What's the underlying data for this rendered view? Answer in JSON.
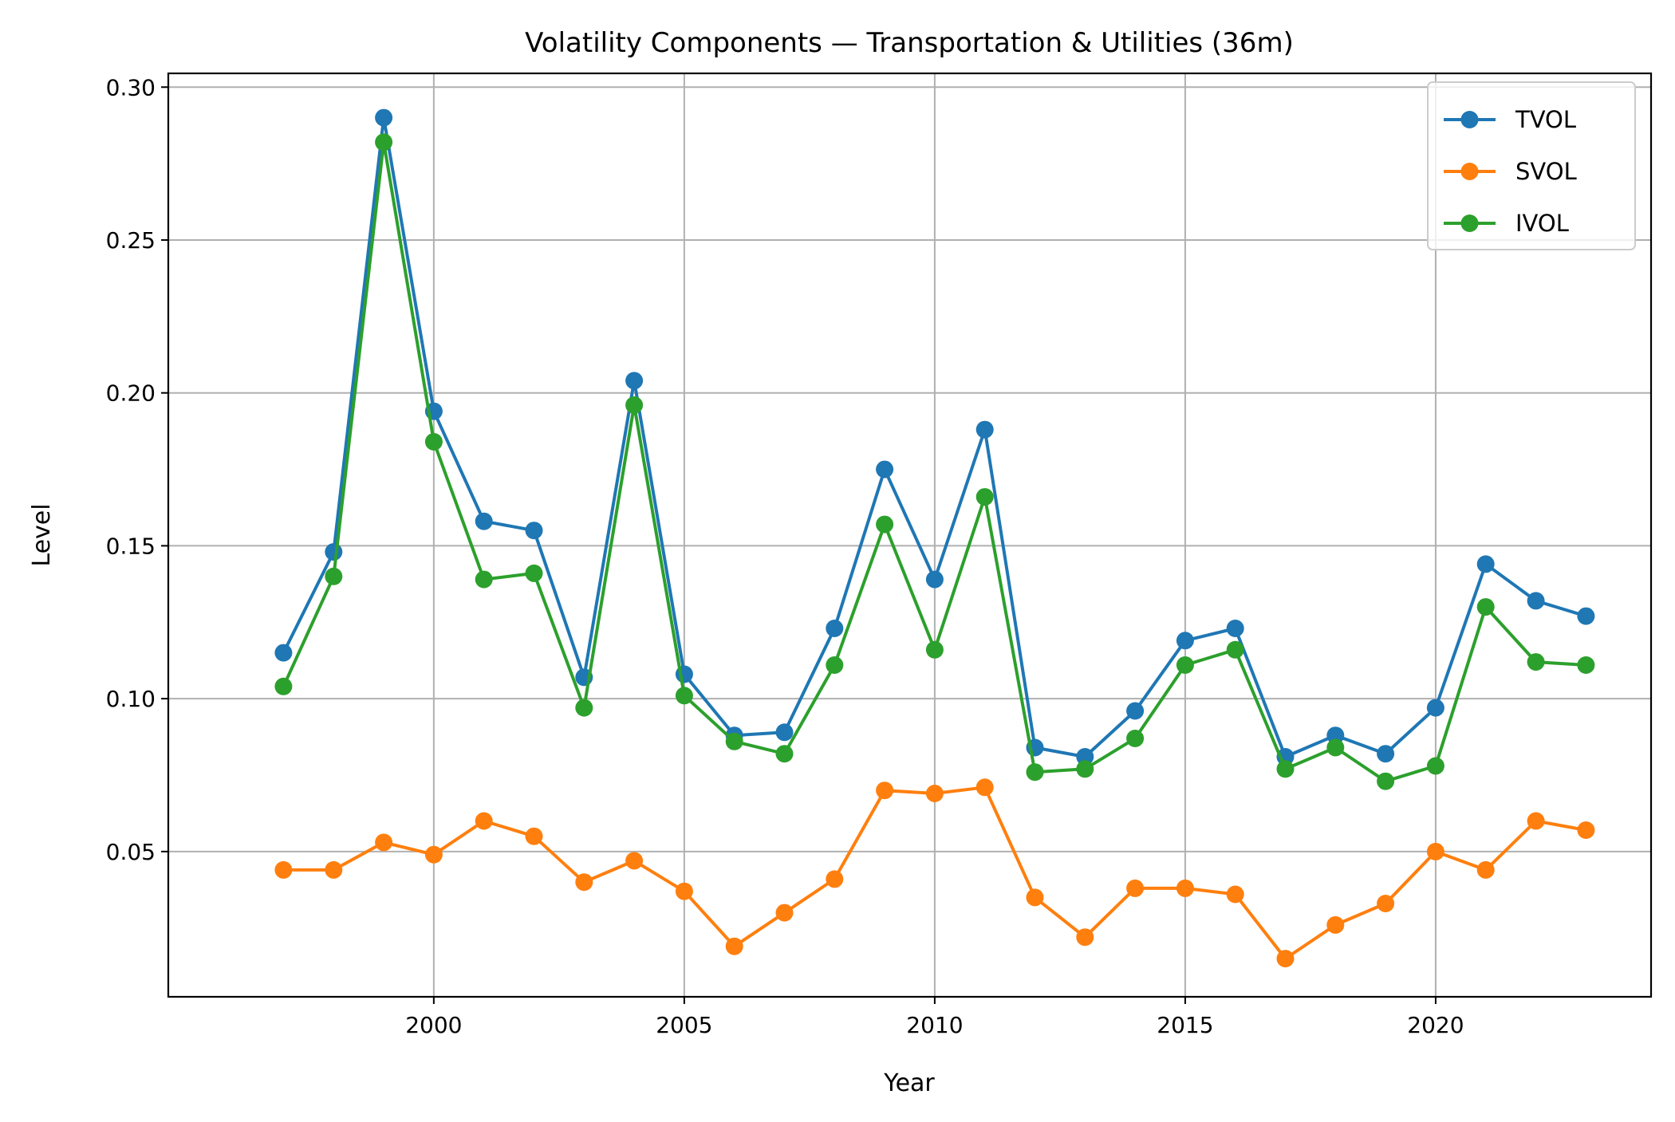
{
  "chart_data": {
    "type": "line",
    "title": "Volatility Components — Transportation & Utilities (36m)",
    "xlabel": "Year",
    "ylabel": "Level",
    "x": [
      1997,
      1998,
      1999,
      2000,
      2001,
      2002,
      2003,
      2004,
      2005,
      2006,
      2007,
      2008,
      2009,
      2010,
      2011,
      2012,
      2013,
      2014,
      2015,
      2016,
      2017,
      2018,
      2019,
      2020,
      2021,
      2022,
      2023
    ],
    "xlim": [
      1994.7,
      2024.3
    ],
    "ylim": [
      0.0025,
      0.3045
    ],
    "xticks": [
      2000,
      2005,
      2010,
      2015,
      2020
    ],
    "yticks": [
      0.05,
      0.1,
      0.15,
      0.2,
      0.25,
      0.3
    ],
    "ytick_labels": [
      "0.05",
      "0.10",
      "0.15",
      "0.20",
      "0.25",
      "0.30"
    ],
    "grid": true,
    "legend_position": "top-right",
    "series": [
      {
        "name": "TVOL",
        "color": "#1f77b4",
        "values": [
          0.115,
          0.148,
          0.29,
          0.194,
          0.158,
          0.155,
          0.107,
          0.204,
          0.108,
          0.088,
          0.089,
          0.123,
          0.175,
          0.139,
          0.188,
          0.084,
          0.081,
          0.096,
          0.119,
          0.123,
          0.081,
          0.088,
          0.082,
          0.097,
          0.144,
          0.132,
          0.127
        ]
      },
      {
        "name": "SVOL",
        "color": "#ff7f0e",
        "values": [
          0.044,
          0.044,
          0.053,
          0.049,
          0.06,
          0.055,
          0.04,
          0.047,
          0.037,
          0.019,
          0.03,
          0.041,
          0.07,
          0.069,
          0.071,
          0.035,
          0.022,
          0.038,
          0.038,
          0.036,
          0.015,
          0.026,
          0.033,
          0.05,
          0.044,
          0.06,
          0.057
        ]
      },
      {
        "name": "IVOL",
        "color": "#2ca02c",
        "values": [
          0.104,
          0.14,
          0.282,
          0.184,
          0.139,
          0.141,
          0.097,
          0.196,
          0.101,
          0.086,
          0.082,
          0.111,
          0.157,
          0.116,
          0.166,
          0.076,
          0.077,
          0.087,
          0.111,
          0.116,
          0.077,
          0.084,
          0.073,
          0.078,
          0.13,
          0.112,
          0.111
        ]
      }
    ]
  }
}
